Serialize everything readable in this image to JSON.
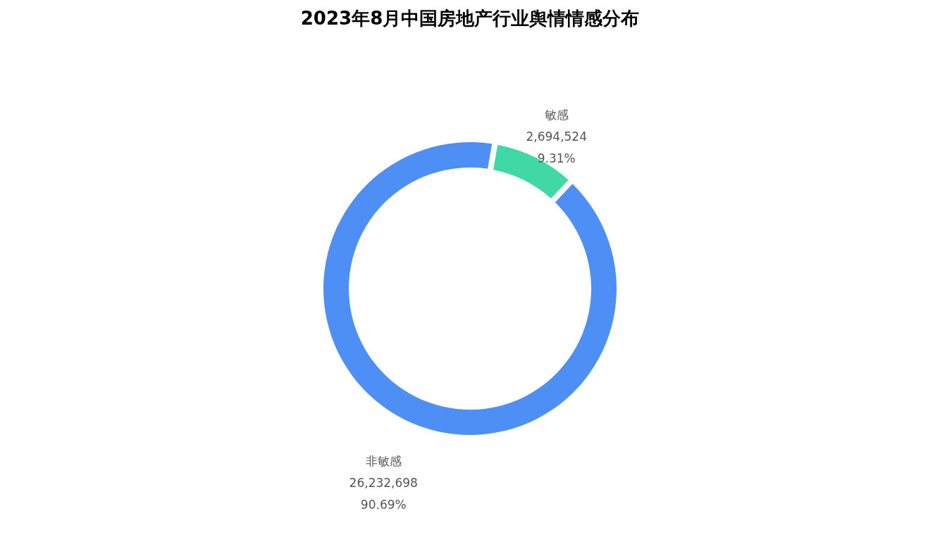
{
  "chart_data": {
    "type": "donut",
    "title": "2023年8月中国房地产行业舆情情感分布",
    "categories": [
      "敏感",
      "非敏感"
    ],
    "values": [
      2694524,
      26232698
    ],
    "colors": [
      "#40d9a6",
      "#4e8ff5"
    ],
    "value_labels": [
      "2,694,524\n9.31%",
      "26,232,698\n90.69%"
    ],
    "legend": false
  }
}
